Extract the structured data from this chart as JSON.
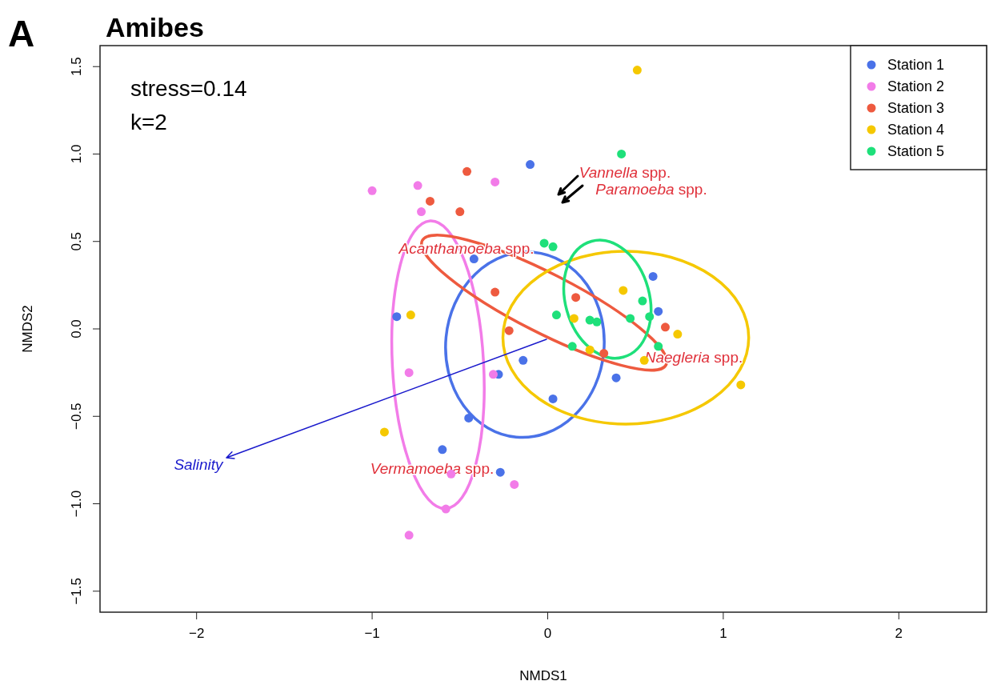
{
  "chart_data": {
    "type": "scatter",
    "title": "Amibes",
    "xlabel": "NMDS1",
    "ylabel": "NMDS2",
    "xlim": [
      -2.55,
      2.5
    ],
    "ylim": [
      -1.62,
      1.62
    ],
    "xticks": [
      {
        "value": -2,
        "label": "−2"
      },
      {
        "value": -1,
        "label": "−1"
      },
      0,
      1,
      2
    ],
    "yticks": [
      {
        "value": -1.5,
        "label": "−1.5"
      },
      {
        "value": -1,
        "label": "−1.0"
      },
      {
        "value": -0.5,
        "label": "−0.5"
      },
      {
        "value": 0,
        "label": "0.0"
      },
      0.5,
      {
        "value": 1,
        "label": "1.0"
      },
      1.5
    ],
    "legend": "top right",
    "marker": "circle",
    "grid": false,
    "annotations": [
      "A",
      "stress=0.14",
      "k=2",
      "Vannella spp.",
      "Paramoeba spp.",
      "Acanthamoeba spp.",
      "Naegleria spp.",
      "Vermamoeba spp.",
      "Salinity"
    ],
    "series": [
      {
        "name": "Station 1",
        "color": "#4a72e8",
        "x": [
          -0.1,
          -0.42,
          -0.86,
          -0.14,
          -0.28,
          0.03,
          -0.45,
          -0.6,
          -0.27,
          0.6,
          0.63,
          0.39
        ],
        "values": [
          0.94,
          0.4,
          0.07,
          -0.18,
          -0.26,
          -0.4,
          -0.51,
          -0.69,
          -0.82,
          0.3,
          0.1,
          -0.28
        ]
      },
      {
        "name": "Station 2",
        "color": "#f27ce8",
        "x": [
          -1.0,
          -0.74,
          -0.3,
          -0.72,
          -0.79,
          -0.31,
          -0.55,
          -0.19,
          -0.58,
          -0.79
        ],
        "values": [
          0.79,
          0.82,
          0.84,
          0.67,
          -0.25,
          -0.26,
          -0.83,
          -0.89,
          -1.03,
          -1.18
        ]
      },
      {
        "name": "Station 3",
        "color": "#ee5a3f",
        "x": [
          -0.46,
          -0.67,
          -0.5,
          -0.3,
          -0.22,
          0.16,
          0.67,
          0.32
        ],
        "values": [
          0.9,
          0.73,
          0.67,
          0.21,
          -0.01,
          0.18,
          0.01,
          -0.14
        ]
      },
      {
        "name": "Station 4",
        "color": "#f5c800",
        "x": [
          0.51,
          -0.78,
          -0.93,
          0.43,
          0.15,
          0.74,
          0.24,
          0.55,
          1.1
        ],
        "values": [
          1.48,
          0.08,
          -0.59,
          0.22,
          0.06,
          -0.03,
          -0.12,
          -0.18,
          -0.32
        ]
      },
      {
        "name": "Station 5",
        "color": "#1ee07a",
        "x": [
          0.42,
          -0.02,
          0.03,
          0.05,
          0.24,
          0.28,
          0.47,
          0.54,
          0.58,
          0.14,
          0.63
        ],
        "values": [
          1.0,
          0.49,
          0.47,
          0.08,
          0.05,
          0.04,
          0.06,
          0.16,
          0.07,
          -0.1,
          -0.1
        ]
      }
    ]
  }
}
